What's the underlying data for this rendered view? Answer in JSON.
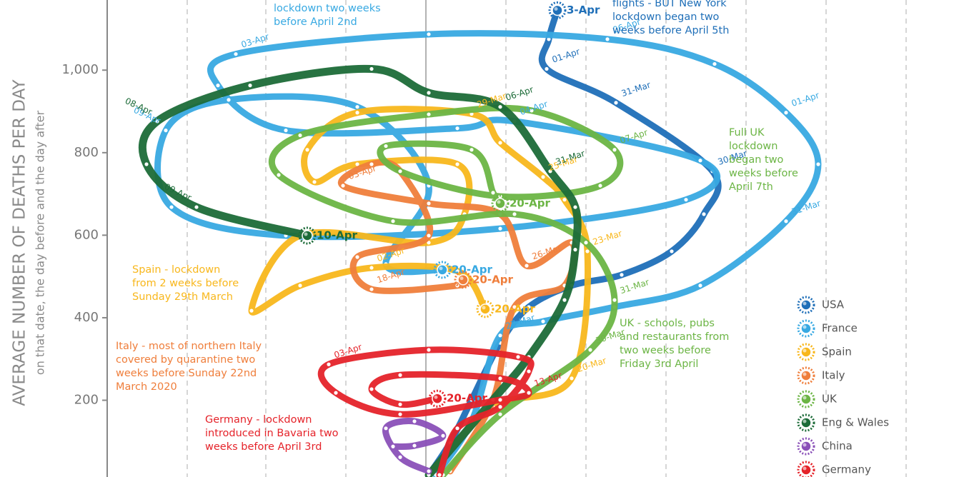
{
  "chart_data": {
    "type": "line",
    "y_label": "AVERAGE NUMBER OF DEATHS PER DAY",
    "y_sublabel": "on that date, the day before and the day after",
    "xlim": [
      0,
      1206
    ],
    "ylim": [
      14,
      1170
    ],
    "yticks": [
      200,
      400,
      600,
      800,
      {
        "value": 1000,
        "label": "1,000"
      }
    ],
    "series": [
      {
        "name": "USA",
        "color": "#1f6fb8",
        "x": [
          450,
          480,
          510,
          550,
          590,
          650,
          720,
          790,
          835,
          847,
          712,
          615,
          618,
          630
        ],
        "values": [
          19,
          97,
          201,
          339,
          426,
          478,
          504,
          561,
          651,
          755,
          921,
          1003,
          1075,
          1145
        ],
        "point_labels": [
          null,
          null,
          null,
          null,
          null,
          null,
          null,
          null,
          null,
          "30-Mar",
          "31-Mar",
          "01-Apr",
          null,
          "3-Apr"
        ]
      },
      {
        "name": "France",
        "color": "#38a9e2",
        "x": [
          460,
          510,
          550,
          610,
          710,
          830,
          950,
          995,
          950,
          850,
          700,
          450,
          180,
          155,
          250,
          490,
          570,
          830,
          810,
          550,
          250,
          90,
          82,
          170,
          350,
          450,
          390,
          469
        ],
        "values": [
          19,
          149,
          357,
          391,
          426,
          478,
          634,
          772,
          897,
          1015,
          1075,
          1087,
          1039,
          963,
          854,
          859,
          876,
          781,
          686,
          616,
          599,
          668,
          854,
          928,
          911,
          720,
          530,
          516
        ],
        "point_labels": [
          null,
          null,
          "27-Mar",
          null,
          null,
          null,
          "31-Mar",
          null,
          "01-Apr",
          null,
          "06-Apr",
          null,
          "03-Apr",
          null,
          null,
          null,
          "04-Apr",
          null,
          null,
          null,
          null,
          null,
          "09-Apr",
          null,
          null,
          null,
          null,
          "20-Apr"
        ]
      },
      {
        "name": "Spain",
        "color": "#f8b71c",
        "x": [
          450,
          540,
          650,
          672,
          640,
          610,
          550,
          510,
          350,
          280,
          290,
          350,
          490,
          500,
          450,
          270,
          202,
          270,
          370,
          490,
          529
        ],
        "values": [
          19,
          184,
          253,
          561,
          686,
          741,
          824,
          894,
          897,
          807,
          729,
          772,
          772,
          651,
          582,
          599,
          417,
          478,
          521,
          513,
          421
        ],
        "point_labels": [
          null,
          null,
          "20-Mar",
          "23-Mar",
          null,
          "25-Mar",
          null,
          "29-Mar",
          null,
          null,
          null,
          null,
          null,
          null,
          null,
          null,
          null,
          null,
          "02-Apr",
          null,
          "20-Apr"
        ]
      },
      {
        "name": "Italy",
        "color": "#ef7e3b",
        "x": [
          480,
          540,
          570,
          640,
          650,
          587,
          550,
          450,
          330,
          370,
          410,
          450,
          350,
          370,
          490,
          498
        ],
        "values": [
          28,
          201,
          426,
          478,
          582,
          526,
          651,
          677,
          720,
          772,
          755,
          599,
          547,
          469,
          478,
          492
        ],
        "point_labels": [
          null,
          null,
          null,
          null,
          null,
          "26-Mar",
          null,
          null,
          "03-Apr",
          null,
          null,
          null,
          null,
          "18-Apr",
          null,
          "20-Apr"
        ]
      },
      {
        "name": "UK",
        "color": "#6cb545",
        "x": [
          470,
          550,
          676,
          710,
          670,
          570,
          400,
          240,
          270,
          450,
          594,
          710,
          690,
          550,
          410,
          390,
          510,
          540,
          550
        ],
        "values": [
          19,
          166,
          322,
          443,
          582,
          651,
          634,
          746,
          842,
          893,
          902,
          807,
          720,
          694,
          755,
          816,
          807,
          703,
          677
        ],
        "point_labels": [
          null,
          null,
          "30-Mar",
          "31-Mar",
          null,
          null,
          null,
          null,
          null,
          null,
          null,
          "07-Apr",
          null,
          null,
          null,
          null,
          null,
          null,
          "20-Apr"
        ]
      },
      {
        "name": "Eng & Wales",
        "color": "#1c6b38",
        "x": [
          450,
          540,
          590,
          640,
          655,
          655,
          620,
          550,
          450,
          370,
          200,
          70,
          55,
          125,
          280
        ],
        "values": [
          19,
          201,
          305,
          443,
          565,
          668,
          755,
          911,
          945,
          1003,
          963,
          876,
          772,
          668,
          599
        ],
        "point_labels": [
          null,
          null,
          null,
          null,
          null,
          null,
          "31-Mar",
          "06-Apr",
          null,
          null,
          null,
          "08-Apr",
          null,
          "09-Apr",
          "10-Apr"
        ]
      },
      {
        "name": "China",
        "color": "#8a50b8",
        "x": [
          450,
          410,
          390,
          430,
          470,
          430,
          400
        ],
        "values": [
          28,
          62,
          132,
          149,
          114,
          90,
          88
        ]
      },
      {
        "name": "Germany",
        "color": "#e5232a",
        "x": [
          465,
          490,
          550,
          590,
          575,
          450,
          310,
          320,
          410,
          550,
          590,
          550,
          410,
          370,
          410,
          462
        ],
        "values": [
          19,
          132,
          184,
          270,
          305,
          322,
          287,
          218,
          166,
          201,
          218,
          253,
          261,
          227,
          190,
          204
        ],
        "point_labels": [
          null,
          null,
          null,
          null,
          null,
          null,
          "03-Apr",
          null,
          null,
          null,
          "13-Apr",
          null,
          null,
          null,
          null,
          "20-Apr"
        ]
      }
    ],
    "annotations": [
      {
        "lines": [
          "lockdown two weeks",
          "before April 2nd"
        ],
        "color": "#38a9e2"
      },
      {
        "lines": [
          "flights - BUT New York",
          "lockdown began two",
          "weeks before April 5th"
        ],
        "color": "#1f6fb8"
      },
      {
        "lines": [
          "Full UK",
          "lockdown",
          "began two",
          "weeks before",
          "April 7th"
        ],
        "color": "#6cb545"
      },
      {
        "lines": [
          "Spain - lockdown",
          "from 2 weeks before",
          "Sunday 29th March"
        ],
        "color": "#f8b71c"
      },
      {
        "lines": [
          "Italy - most of northern Italy",
          "covered by quarantine two",
          "weeks before Sunday 22nd",
          "March 2020"
        ],
        "color": "#ef7e3b"
      },
      {
        "lines": [
          "UK - schools, pubs",
          "and restaurants from",
          "two weeks before",
          "Friday 3rd April"
        ],
        "color": "#6cb545"
      },
      {
        "lines": [
          "Germany - lockdown",
          "introduced in Bavaria two",
          "weeks before April 3rd"
        ],
        "color": "#e5232a"
      }
    ]
  }
}
